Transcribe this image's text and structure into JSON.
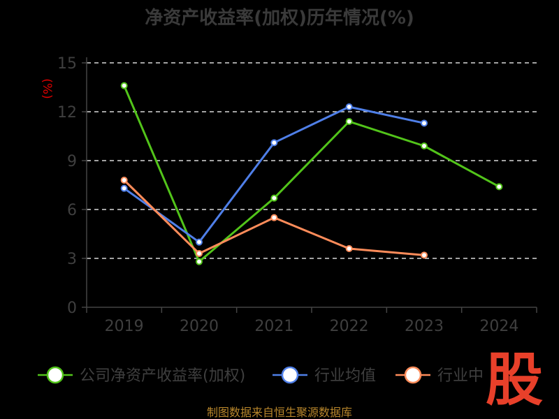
{
  "chart_data": {
    "type": "line",
    "title": "净资产收益率(加权)历年情况(%)",
    "ylabel": "(%)",
    "categories": [
      "2019",
      "2020",
      "2021",
      "2022",
      "2023",
      "2024"
    ],
    "ylim": [
      0,
      15
    ],
    "yticks": [
      0,
      3,
      6,
      9,
      12,
      15
    ],
    "grid": true,
    "legend_position": "bottom",
    "series": [
      {
        "name": "公司净资产收益率(加权)",
        "color": "#52c41a",
        "values": [
          13.6,
          2.8,
          6.7,
          11.4,
          9.9,
          7.4
        ]
      },
      {
        "name": "行业均值",
        "color": "#4f7fe8",
        "values": [
          7.3,
          4.0,
          10.1,
          12.3,
          11.3,
          null
        ]
      },
      {
        "name": "行业中",
        "color": "#ff8c5a",
        "values": [
          7.8,
          3.3,
          5.5,
          3.6,
          3.2,
          null
        ]
      }
    ]
  },
  "footer": {
    "source": "制图数据来自恒生聚源数据库"
  },
  "logo": {
    "text": "股"
  }
}
